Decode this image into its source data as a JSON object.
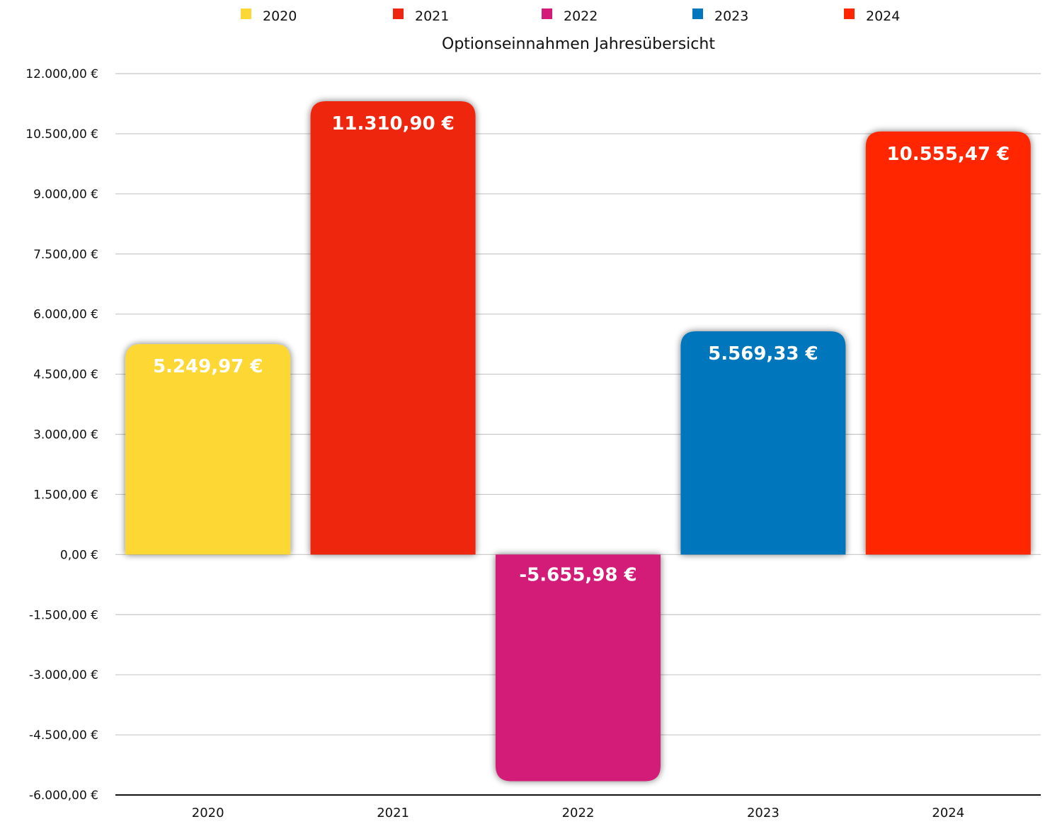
{
  "chart_data": {
    "type": "bar",
    "title": "Optionseinnahmen Jahresübersicht",
    "categories": [
      "2020",
      "2021",
      "2022",
      "2023",
      "2024"
    ],
    "values": [
      5249.97,
      11310.9,
      -5655.98,
      5569.33,
      10555.47
    ],
    "data_labels": [
      "5.249,97 €",
      "11.310,90 €",
      "-5.655,98 €",
      "5.569,33 €",
      "10.555,47 €"
    ],
    "colors": [
      "#FDD835",
      "#EE2510",
      "#D31A78",
      "#0277BD",
      "#FF2600"
    ],
    "legend": [
      "2020",
      "2021",
      "2022",
      "2023",
      "2024"
    ],
    "legend_position": "top",
    "ylim": [
      -6000,
      12000
    ],
    "yticks": [
      12000,
      10500,
      9000,
      7500,
      6000,
      4500,
      3000,
      1500,
      0,
      -1500,
      -3000,
      -4500,
      -6000
    ],
    "ytick_labels": [
      "12.000,00 €",
      "10.500,00 €",
      "9.000,00 €",
      "7.500,00 €",
      "6.000,00 €",
      "4.500,00 €",
      "3.000,00 €",
      "1.500,00 €",
      "0,00 €",
      "-1.500,00 €",
      "-3.000,00 €",
      "-4.500,00 €",
      "-6.000,00 €"
    ],
    "grid": true,
    "xlabel": "",
    "ylabel": ""
  }
}
